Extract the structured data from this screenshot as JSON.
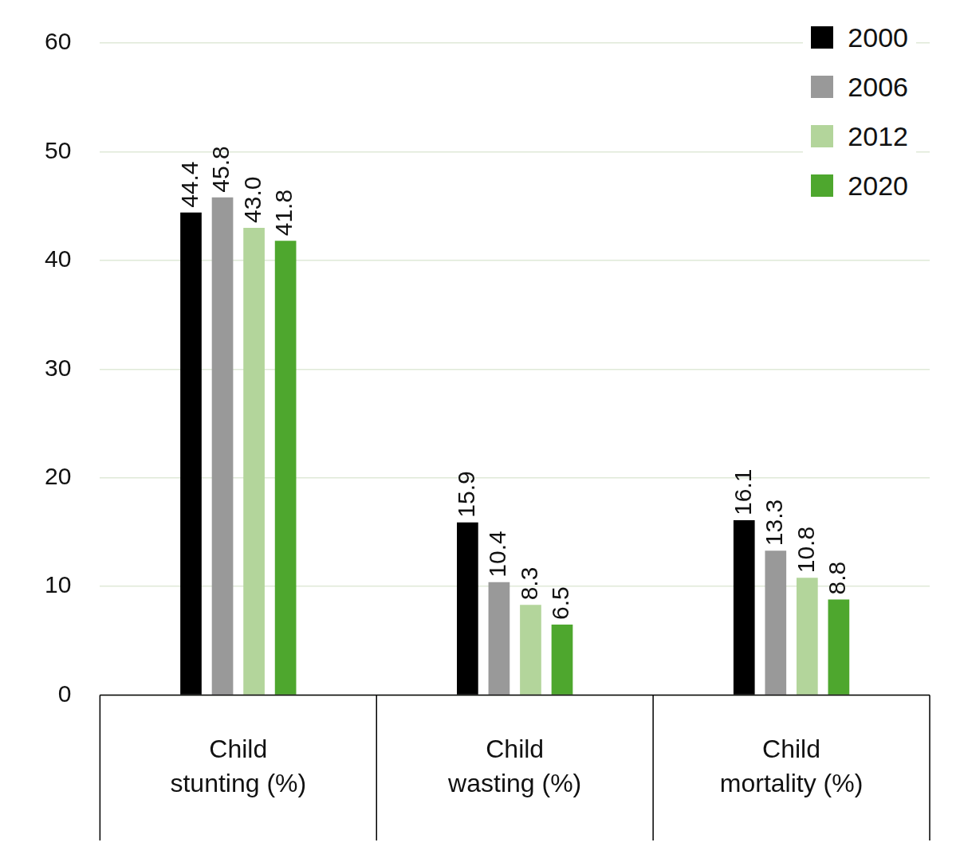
{
  "chart_data": {
    "type": "bar",
    "categories": [
      "Child stunting (%)",
      "Child wasting (%)",
      "Child mortality (%)"
    ],
    "series": [
      {
        "name": "2000",
        "color": "#000000",
        "values": [
          44.4,
          15.9,
          16.1
        ]
      },
      {
        "name": "2006",
        "color": "#999999",
        "values": [
          45.8,
          10.4,
          13.3
        ]
      },
      {
        "name": "2012",
        "color": "#b3d59b",
        "values": [
          43.0,
          8.3,
          10.8
        ],
        "value_labels": [
          "43.0",
          "8.3",
          "10.8"
        ]
      },
      {
        "name": "2020",
        "color": "#4ea72e",
        "values": [
          41.8,
          6.5,
          8.8
        ]
      }
    ],
    "ylim": [
      0,
      60
    ],
    "yticks": [
      0,
      10,
      20,
      30,
      40,
      50,
      60
    ],
    "grid": true,
    "legend": "top-right",
    "data_labels": true
  }
}
